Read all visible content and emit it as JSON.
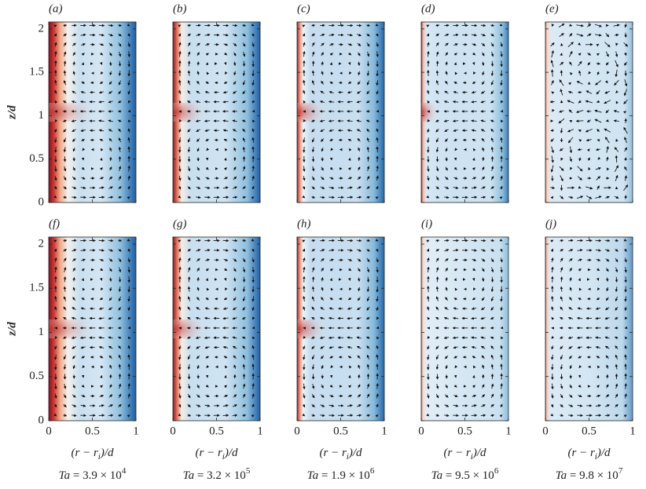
{
  "chart_data": [
    {
      "type": "field",
      "panel_label": "(a)",
      "ylabel": "z/d",
      "xlim": [
        0,
        1
      ],
      "ylim": [
        0,
        2.08
      ],
      "xticks": [
        0,
        0.5,
        1
      ],
      "yticks": [
        0,
        0.5,
        1,
        1.5,
        2
      ]
    },
    {
      "type": "field",
      "panel_label": "(b)",
      "xlim": [
        0,
        1
      ],
      "ylim": [
        0,
        2.08
      ],
      "xticks": [
        0,
        0.5,
        1
      ],
      "yticks": [
        0,
        0.5,
        1,
        1.5,
        2
      ]
    },
    {
      "type": "field",
      "panel_label": "(c)",
      "xlim": [
        0,
        1
      ],
      "ylim": [
        0,
        2.08
      ],
      "xticks": [
        0,
        0.5,
        1
      ],
      "yticks": [
        0,
        0.5,
        1,
        1.5,
        2
      ]
    },
    {
      "type": "field",
      "panel_label": "(d)",
      "xlim": [
        0,
        1
      ],
      "ylim": [
        0,
        2.08
      ],
      "xticks": [
        0,
        0.5,
        1
      ],
      "yticks": [
        0,
        0.5,
        1,
        1.5,
        2
      ]
    },
    {
      "type": "field",
      "panel_label": "(e)",
      "xlim": [
        0,
        1
      ],
      "ylim": [
        0,
        2.08
      ],
      "xticks": [
        0,
        0.5,
        1
      ],
      "yticks": [
        0,
        0.5,
        1,
        1.5,
        2
      ]
    },
    {
      "type": "field",
      "panel_label": "(f)",
      "ylabel": "z/d",
      "xlabel": {
        "main": "(r − r",
        "sub": "i",
        "end": ")/d"
      },
      "caption": {
        "symbol": "Ta",
        "text": " = 3.9 × 10",
        "exponent": "4"
      },
      "xlim": [
        0,
        1
      ],
      "ylim": [
        0,
        2.08
      ],
      "xticks": [
        0,
        0.5,
        1
      ],
      "yticks": [
        0,
        0.5,
        1,
        1.5,
        2
      ]
    },
    {
      "type": "field",
      "panel_label": "(g)",
      "xlabel": {
        "main": "(r − r",
        "sub": "i",
        "end": ")/d"
      },
      "caption": {
        "symbol": "Ta",
        "text": " = 3.2 × 10",
        "exponent": "5"
      },
      "xlim": [
        0,
        1
      ],
      "ylim": [
        0,
        2.08
      ],
      "xticks": [
        0,
        0.5,
        1
      ],
      "yticks": [
        0,
        0.5,
        1,
        1.5,
        2
      ]
    },
    {
      "type": "field",
      "panel_label": "(h)",
      "xlabel": {
        "main": "(r − r",
        "sub": "i",
        "end": ")/d"
      },
      "caption": {
        "symbol": "Ta",
        "text": " = 1.9 × 10",
        "exponent": "6"
      },
      "xlim": [
        0,
        1
      ],
      "ylim": [
        0,
        2.08
      ],
      "xticks": [
        0,
        0.5,
        1
      ],
      "yticks": [
        0,
        0.5,
        1,
        1.5,
        2
      ]
    },
    {
      "type": "field",
      "panel_label": "(i)",
      "xlabel": {
        "main": "(r − r",
        "sub": "i",
        "end": ")/d"
      },
      "caption": {
        "symbol": "Ta",
        "text": " = 9.5 × 10",
        "exponent": "6"
      },
      "xlim": [
        0,
        1
      ],
      "ylim": [
        0,
        2.08
      ],
      "xticks": [
        0,
        0.5,
        1
      ],
      "yticks": [
        0,
        0.5,
        1,
        1.5,
        2
      ]
    },
    {
      "type": "field",
      "panel_label": "(j)",
      "xlabel": {
        "main": "(r − r",
        "sub": "i",
        "end": ")/d"
      },
      "caption": {
        "symbol": "Ta",
        "text": " = 9.8 × 10",
        "exponent": "7"
      },
      "xlim": [
        0,
        1
      ],
      "ylim": [
        0,
        2.08
      ],
      "xticks": [
        0,
        0.5,
        1
      ],
      "yticks": [
        0,
        0.5,
        1,
        1.5,
        2
      ]
    }
  ]
}
